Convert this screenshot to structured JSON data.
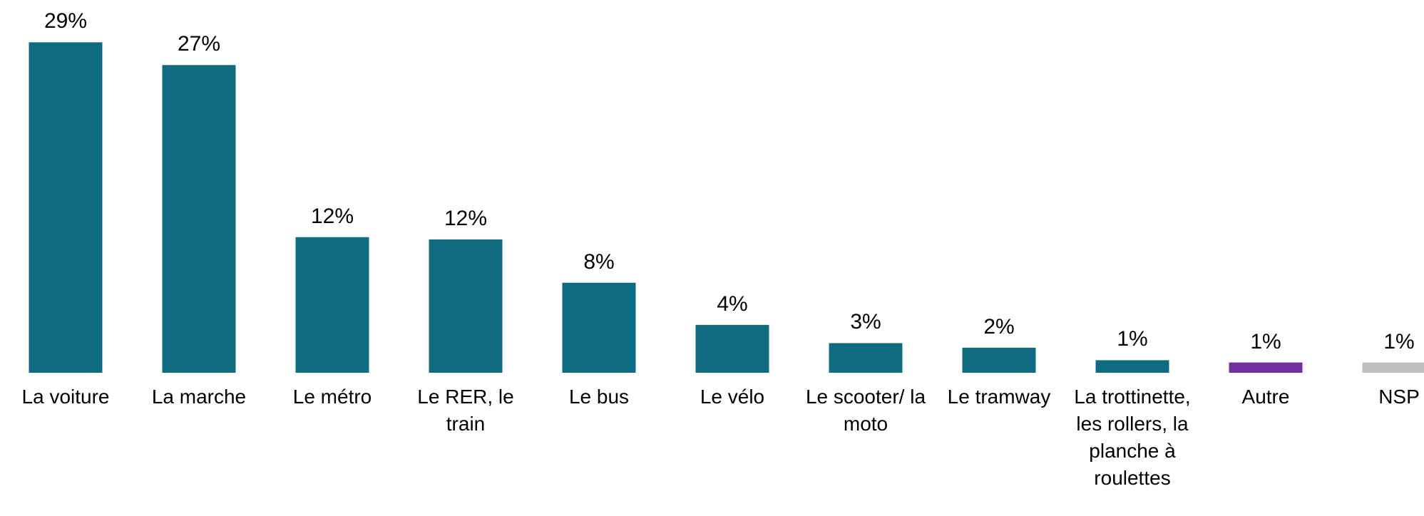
{
  "chart_data": {
    "type": "bar",
    "categories": [
      "La voiture",
      "La marche",
      "Le métro",
      "Le RER, le train",
      "Le bus",
      "Le vélo",
      "Le scooter/ la moto",
      "Le tramway",
      "La trottinette, les rollers, la planche à roulettes",
      "Autre",
      "NSP"
    ],
    "values": [
      29,
      27,
      11.9,
      11.7,
      7.9,
      4.2,
      2.6,
      2.2,
      1.1,
      0.9,
      0.9
    ],
    "value_labels": [
      "29%",
      "27%",
      "12%",
      "12%",
      "8%",
      "4%",
      "3%",
      "2%",
      "1%",
      "1%",
      "1%"
    ],
    "colors": [
      "#0f6b80",
      "#0f6b80",
      "#0f6b80",
      "#0f6b80",
      "#0f6b80",
      "#0f6b80",
      "#0f6b80",
      "#0f6b80",
      "#0f6b80",
      "#7030a0",
      "#bfbfbf"
    ]
  }
}
